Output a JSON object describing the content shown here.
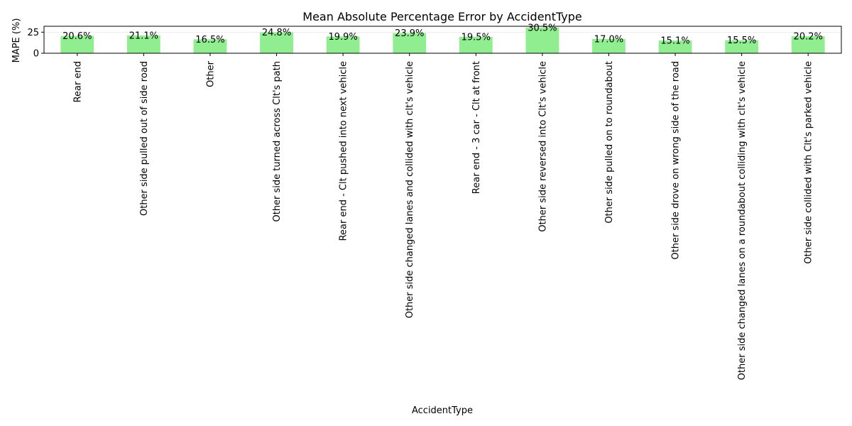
{
  "chart_data": {
    "type": "bar",
    "title": "Mean Absolute Percentage Error by AccidentType",
    "xlabel": "AccidentType",
    "ylabel": "MAPE (%)",
    "ylim": [
      0,
      32.0
    ],
    "yticks": [
      0,
      25
    ],
    "grid": "horizontal",
    "bar_color": "#90ee90",
    "categories": [
      "Rear end",
      "Other side pulled out of side road",
      "Other",
      "Other side turned across Clt's path",
      "Rear end - Clt pushed into next vehicle",
      "Other side changed lanes and collided with clt's vehicle",
      "Rear end - 3 car - Clt at front",
      "Other side reversed into Clt's vehicle",
      "Other side pulled on to roundabout",
      "Other side drove on wrong side of the road",
      "Other side changed lanes on a roundabout colliding with clt's vehicle",
      "Other side collided with Clt's parked vehicle"
    ],
    "values": [
      20.6,
      21.1,
      16.5,
      24.8,
      19.9,
      23.9,
      19.5,
      30.5,
      17.0,
      15.1,
      15.5,
      20.2
    ],
    "value_labels": [
      "20.6%",
      "21.1%",
      "16.5%",
      "24.8%",
      "19.9%",
      "23.9%",
      "19.5%",
      "30.5%",
      "17.0%",
      "15.1%",
      "15.5%",
      "20.2%"
    ]
  }
}
